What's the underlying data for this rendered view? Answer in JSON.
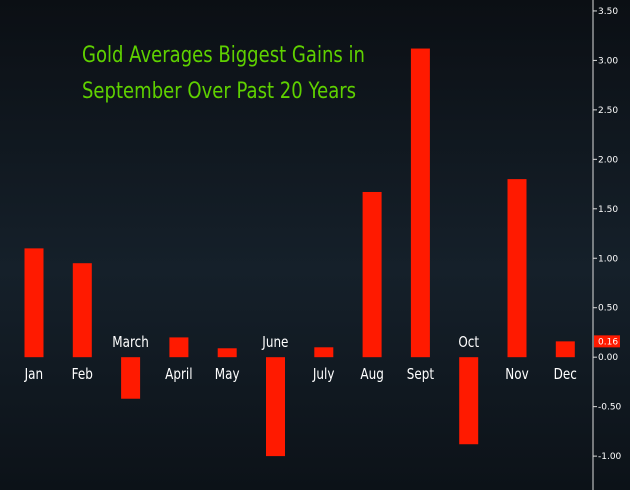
{
  "chart_data": {
    "type": "bar",
    "title_lines": [
      "Gold Averages Biggest Gains in",
      "September Over Past 20 Years"
    ],
    "categories": [
      "Jan",
      "Feb",
      "March",
      "April",
      "May",
      "June",
      "July",
      "Aug",
      "Sept",
      "Oct",
      "Nov",
      "Dec"
    ],
    "values": [
      1.1,
      0.95,
      -0.42,
      0.2,
      0.09,
      -1.0,
      0.1,
      1.67,
      3.12,
      -0.88,
      1.8,
      0.16
    ],
    "ylim": [
      -1.1,
      3.55
    ],
    "y_ticks": [
      "3.50",
      "3.00",
      "2.50",
      "2.00",
      "1.50",
      "1.00",
      "0.50",
      "0.00",
      "-0.50",
      "-1.00"
    ],
    "y_axis_side": "right",
    "last_value_label": "0.16",
    "grid": false,
    "colors": {
      "bar": "#ff1a00",
      "title": "#5fd100",
      "last_value_box": "#ff1a00"
    }
  }
}
